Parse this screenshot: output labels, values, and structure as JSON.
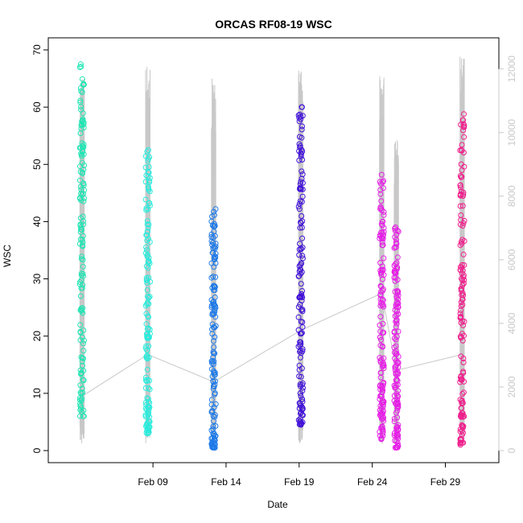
{
  "chart_data": {
    "type": "scatter",
    "title": "ORCAS RF08-19 WSC",
    "xlabel": "Date",
    "ylabel": "WSC",
    "x_ticks": [
      "Feb 09",
      "Feb 14",
      "Feb 19",
      "Feb 24",
      "Feb 29"
    ],
    "y_ticks": [
      0,
      10,
      20,
      30,
      40,
      50,
      60,
      70
    ],
    "y2_ticks": [
      0,
      2000,
      4000,
      6000,
      8000,
      10000,
      12000
    ],
    "ylim": [
      0,
      70
    ],
    "y2lim": [
      0,
      12600
    ],
    "xlim": [
      "2016-02-02T12:00",
      "2016-03-03T00:00"
    ],
    "colors": {
      "altitude": "#c8c8c8",
      "mean_line": "#c8c8c8",
      "axis": "#000000",
      "right_axis": "#c8c8c8"
    },
    "flights": [
      {
        "date": "2016-02-04",
        "time_span": [
          "2016-02-04T00:00",
          "2016-02-04T07:12"
        ],
        "color": "#1ee6b4",
        "wsc_range": [
          6,
          67.5
        ],
        "wsc_mean": 9.5,
        "altitude_max": 11800
      },
      {
        "date": "2016-02-08",
        "time_span": [
          "2016-02-08T12:00",
          "2016-02-08T19:12"
        ],
        "color": "#28ecdc",
        "wsc_range": [
          3,
          52.5
        ],
        "wsc_mean": 16.8,
        "altitude_max": 12200
      },
      {
        "date": "2016-02-13",
        "time_span": [
          "2016-02-13T00:00",
          "2016-02-13T07:12"
        ],
        "color": "#1e7ae8",
        "wsc_range": [
          0.5,
          42.2
        ],
        "wsc_mean": 12,
        "altitude_max": 11700
      },
      {
        "date": "2016-02-19",
        "time_span": [
          "2016-02-18T23:00",
          "2016-02-19T06:12"
        ],
        "color": "#4010d8",
        "wsc_range": [
          4.5,
          60
        ],
        "wsc_mean": 21,
        "altitude_max": 12000
      },
      {
        "date": "2016-02-24",
        "time_span": [
          "2016-02-24T12:00",
          "2016-02-24T19:12"
        ],
        "color": "#e61ee6",
        "wsc_range": [
          2,
          48.2
        ],
        "wsc_mean": 27.5,
        "altitude_max": 11800
      },
      {
        "date": "2016-02-26",
        "time_span": [
          "2016-02-25T12:00",
          "2016-02-25T19:12"
        ],
        "color": "#e61ee6",
        "wsc_range": [
          0.5,
          39
        ],
        "wsc_mean": 14,
        "altitude_max": 9800
      },
      {
        "date": "2016-03-01",
        "time_span": [
          "2016-03-01T00:00",
          "2016-03-01T07:12"
        ],
        "color": "#f01e8c",
        "wsc_range": [
          1,
          58.8
        ],
        "wsc_mean": 16.8,
        "altitude_max": 12400
      }
    ]
  }
}
